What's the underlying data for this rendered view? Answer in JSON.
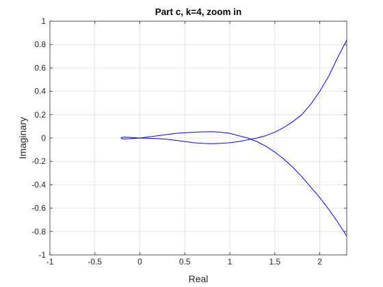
{
  "chart_data": {
    "type": "line",
    "title": "Part c, k=4, zoom in",
    "xlabel": "Real",
    "ylabel": "Imaginary",
    "xlim": [
      -1,
      2.3
    ],
    "ylim": [
      -1,
      1
    ],
    "xticks": [
      -1,
      -0.5,
      0,
      0.5,
      1,
      1.5,
      2
    ],
    "xtick_labels": [
      "-1",
      "-0.5",
      "0",
      "0.5",
      "1",
      "1.5",
      "2"
    ],
    "yticks": [
      -1,
      -0.8,
      -0.6,
      -0.4,
      -0.2,
      0,
      0.2,
      0.4,
      0.6,
      0.8,
      1
    ],
    "ytick_labels": [
      "-1",
      "-0.8",
      "-0.6",
      "-0.4",
      "-0.2",
      "0",
      "0.2",
      "0.4",
      "0.6",
      "0.8",
      "1"
    ],
    "grid": true,
    "colors": {
      "line": "#0000ff",
      "grid": "#dfdfdf",
      "axis": "#262626"
    },
    "series": [
      {
        "points": [
          [
            2.3,
            0.84
          ],
          [
            2.2,
            0.69
          ],
          [
            2.1,
            0.53
          ],
          [
            2.0,
            0.4
          ],
          [
            1.9,
            0.29
          ],
          [
            1.8,
            0.2
          ],
          [
            1.7,
            0.14
          ],
          [
            1.6,
            0.09
          ],
          [
            1.5,
            0.05
          ],
          [
            1.4,
            0.02
          ],
          [
            1.3,
            0.0
          ],
          [
            1.2,
            -0.015
          ],
          [
            1.1,
            -0.03
          ],
          [
            1.0,
            -0.04
          ],
          [
            0.9,
            -0.045
          ],
          [
            0.8,
            -0.048
          ],
          [
            0.7,
            -0.045
          ],
          [
            0.6,
            -0.04
          ],
          [
            0.5,
            -0.03
          ],
          [
            0.4,
            -0.02
          ],
          [
            0.3,
            -0.01
          ],
          [
            0.2,
            -0.005
          ],
          [
            0.1,
            -0.002
          ],
          [
            0.0,
            0.0
          ],
          [
            -0.1,
            0.005
          ],
          [
            -0.17,
            0.008
          ],
          [
            -0.2,
            0.005
          ],
          [
            -0.21,
            0.0
          ],
          [
            -0.2,
            -0.005
          ],
          [
            -0.17,
            -0.008
          ],
          [
            -0.1,
            -0.005
          ],
          [
            0.0,
            0.0
          ],
          [
            0.1,
            0.01
          ],
          [
            0.2,
            0.02
          ],
          [
            0.3,
            0.03
          ],
          [
            0.4,
            0.04
          ],
          [
            0.5,
            0.045
          ],
          [
            0.6,
            0.05
          ],
          [
            0.7,
            0.053
          ],
          [
            0.8,
            0.054
          ],
          [
            0.9,
            0.05
          ],
          [
            1.0,
            0.04
          ],
          [
            1.1,
            0.02
          ],
          [
            1.2,
            0.0
          ],
          [
            1.3,
            -0.03
          ],
          [
            1.4,
            -0.07
          ],
          [
            1.5,
            -0.12
          ],
          [
            1.6,
            -0.18
          ],
          [
            1.7,
            -0.25
          ],
          [
            1.8,
            -0.33
          ],
          [
            1.9,
            -0.42
          ],
          [
            2.0,
            -0.51
          ],
          [
            2.1,
            -0.61
          ],
          [
            2.2,
            -0.72
          ],
          [
            2.3,
            -0.84
          ]
        ]
      }
    ]
  }
}
